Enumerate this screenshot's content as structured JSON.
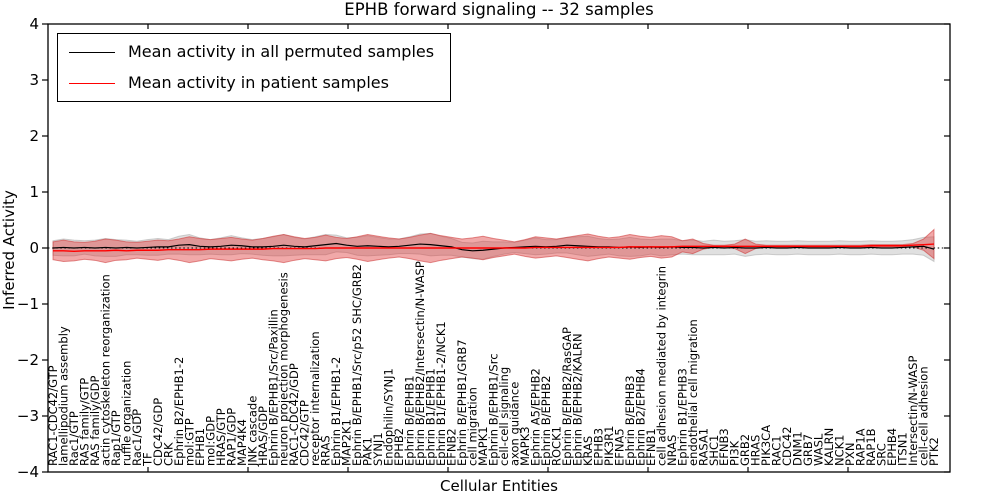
{
  "figure": {
    "background": "#ffffff"
  },
  "chart_data": {
    "type": "line",
    "title": "EPHB forward signaling -- 32 samples",
    "xlabel": "Cellular Entities",
    "ylabel": "Inferred Activity",
    "ylim": [
      -4,
      4
    ],
    "yticks": [
      -4,
      -3,
      -2,
      -1,
      0,
      1,
      2,
      3,
      4
    ],
    "ytick_labels": [
      "−4",
      "−3",
      "−2",
      "−1",
      "0",
      "1",
      "2",
      "3",
      "4"
    ],
    "grid": false,
    "zero_line": {
      "y": 0,
      "style": "dotted",
      "color": "#000000"
    },
    "legend": {
      "position": "upper left",
      "entries": [
        {
          "label": "Mean activity in all permuted samples",
          "color": "#000000"
        },
        {
          "label": "Mean activity in patient samples",
          "color": "#ff0000"
        }
      ]
    },
    "categories": [
      "RAC1-CDC42/GTP",
      "lamellipodium assembly",
      "Rac1/GTP",
      "RAS family/GTP",
      "RAS family/GDP",
      "actin cytoskeleton reorganization",
      "Rap1/GTP",
      "ruffle organization",
      "Rac1/GDP",
      "TF",
      "CDC42/GDP",
      "CRK",
      "Ephrin B2/EPHB1-2",
      "mol:GTP",
      "EPHB1",
      "mol:GDP",
      "HRAS/GTP",
      "RAP1/GDP",
      "MAP4K4",
      "JNK cascade",
      "HRAS/GDP",
      "Ephrin B/EPHB1/Src/Paxillin",
      "neuron projection morphogenesis",
      "RAC1-CDC42/GDP",
      "CDC42/GTP",
      "receptor internalization",
      "RRAS",
      "Ephrin B1/EPHB1-2",
      "MAP2K1",
      "Ephrin B/EPHB1/Src/p52 SHC/GRB2",
      "PAK1",
      "SYNJ1",
      "Endophilin/SYNJ1",
      "EPHB2",
      "Ephrin B/EPHB1",
      "Ephrin B/EPHB2/Intersectin/N-WASP",
      "Ephrin B1/EPHB1",
      "Ephrin B1/EPHB1-2/NCK1",
      "EFNB2",
      "Ephrin B/EPHB1/GRB7",
      "cell migration",
      "MAPK1",
      "Ephrin B/EPHB1/Src",
      "cell-cell signaling",
      "axon guidance",
      "MAPK3",
      "Ephrin A5/EPHB2",
      "Ephrin B/EPHB2",
      "ROCK1",
      "Ephrin B/EPHB2/RasGAP",
      "Ephrin B/EPHB2/KALRN",
      "KRAS",
      "EPHB3",
      "PIK3R1",
      "EFNA5",
      "Ephrin B/EPHB3",
      "Ephrin B2/EPHB4",
      "EFNB1",
      "cell adhesion mediated by integrin",
      "NRAS",
      "Ephrin B1/EPHB3",
      "endothelial cell migration",
      "RASA1",
      "SHC1",
      "EFNB3",
      "PI3K",
      "GRB2",
      "HRAS",
      "PIK3CA",
      "RAC1",
      "CDC42",
      "DNM1",
      "GRB7",
      "WASL",
      "KALRN",
      "NCK1",
      "PXN",
      "RAP1A",
      "RAP1B",
      "SRC",
      "EPHB4",
      "ITSN1",
      "Intersectin/N-WASP",
      "cell-cell adhesion",
      "PTK2"
    ],
    "series": [
      {
        "id": "permuted_band",
        "name": "Permuted samples mean ± std band",
        "type": "band",
        "around": "permuted_mean",
        "color": "#999999",
        "opacity": 0.3,
        "edge_color": "#aaaaaa",
        "std": [
          0.13,
          0.15,
          0.14,
          0.12,
          0.14,
          0.16,
          0.15,
          0.13,
          0.12,
          0.14,
          0.15,
          0.13,
          0.16,
          0.18,
          0.15,
          0.13,
          0.15,
          0.17,
          0.14,
          0.13,
          0.15,
          0.17,
          0.19,
          0.16,
          0.14,
          0.16,
          0.18,
          0.15,
          0.13,
          0.16,
          0.18,
          0.16,
          0.14,
          0.13,
          0.15,
          0.18,
          0.2,
          0.17,
          0.15,
          0.13,
          0.14,
          0.16,
          0.13,
          0.11,
          0.09,
          0.12,
          0.15,
          0.13,
          0.12,
          0.14,
          0.16,
          0.18,
          0.15,
          0.13,
          0.15,
          0.17,
          0.15,
          0.13,
          0.15,
          0.14,
          0.12,
          0.13,
          0.12,
          0.13,
          0.12,
          0.12,
          0.15,
          0.12,
          0.12,
          0.12,
          0.12,
          0.12,
          0.12,
          0.12,
          0.12,
          0.12,
          0.12,
          0.12,
          0.12,
          0.12,
          0.12,
          0.12,
          0.13,
          0.16,
          0.22
        ]
      },
      {
        "id": "patient_band",
        "name": "Patient samples mean ± std band",
        "type": "band",
        "around": "patient_mean",
        "color": "#dd3333",
        "opacity": 0.42,
        "edge_color": "#cc3333",
        "std": [
          0.16,
          0.19,
          0.17,
          0.15,
          0.17,
          0.21,
          0.18,
          0.16,
          0.14,
          0.16,
          0.18,
          0.16,
          0.19,
          0.23,
          0.2,
          0.17,
          0.19,
          0.21,
          0.18,
          0.16,
          0.19,
          0.22,
          0.25,
          0.21,
          0.18,
          0.2,
          0.23,
          0.19,
          0.17,
          0.2,
          0.24,
          0.21,
          0.18,
          0.16,
          0.19,
          0.23,
          0.26,
          0.22,
          0.19,
          0.16,
          0.18,
          0.21,
          0.17,
          0.14,
          0.11,
          0.15,
          0.19,
          0.17,
          0.15,
          0.18,
          0.21,
          0.24,
          0.2,
          0.17,
          0.19,
          0.22,
          0.19,
          0.17,
          0.2,
          0.18,
          0.1,
          0.13,
          0.05,
          0.02,
          0.02,
          0.04,
          0.13,
          0.04,
          0.02,
          0.02,
          0.02,
          0.02,
          0.02,
          0.02,
          0.02,
          0.02,
          0.02,
          0.02,
          0.02,
          0.02,
          0.02,
          0.02,
          0.03,
          0.1,
          0.26
        ]
      },
      {
        "id": "permuted_mean",
        "name": "Mean activity in all permuted samples",
        "type": "line",
        "color": "#000000",
        "width": 1.2,
        "values": [
          0.0,
          0.01,
          0.0,
          0.01,
          0.0,
          0.01,
          0.0,
          0.01,
          0.0,
          0.01,
          0.02,
          0.02,
          0.05,
          0.06,
          0.03,
          0.02,
          0.03,
          0.05,
          0.04,
          0.02,
          0.02,
          0.03,
          0.05,
          0.03,
          0.02,
          0.04,
          0.06,
          0.08,
          0.05,
          0.03,
          0.04,
          0.03,
          0.02,
          0.03,
          0.05,
          0.07,
          0.06,
          0.04,
          0.02,
          -0.03,
          -0.05,
          -0.04,
          -0.02,
          0.0,
          0.01,
          0.02,
          0.03,
          0.02,
          0.03,
          0.05,
          0.04,
          0.03,
          0.02,
          0.02,
          0.01,
          0.02,
          0.01,
          0.02,
          0.01,
          0.02,
          0.01,
          0.01,
          0.0,
          0.01,
          0.0,
          0.01,
          0.0,
          0.0,
          0.01,
          0.0,
          0.0,
          0.01,
          0.0,
          0.0,
          0.0,
          0.01,
          0.0,
          0.0,
          0.01,
          0.0,
          0.0,
          0.01,
          0.02,
          0.03,
          -0.02
        ]
      },
      {
        "id": "patient_mean",
        "name": "Mean activity in patient samples",
        "type": "line",
        "color": "#ff0000",
        "width": 1.4,
        "values": [
          -0.05,
          -0.05,
          -0.06,
          -0.05,
          -0.05,
          -0.05,
          -0.04,
          -0.05,
          -0.04,
          -0.04,
          -0.04,
          -0.03,
          -0.03,
          -0.03,
          -0.03,
          -0.02,
          -0.02,
          -0.02,
          -0.02,
          -0.02,
          -0.02,
          -0.01,
          -0.01,
          -0.01,
          -0.01,
          -0.01,
          0.0,
          0.0,
          0.0,
          0.0,
          0.0,
          0.0,
          0.0,
          0.0,
          0.0,
          0.0,
          0.0,
          0.0,
          0.0,
          0.0,
          0.0,
          0.0,
          0.0,
          0.0,
          0.0,
          0.0,
          0.01,
          0.01,
          0.01,
          0.01,
          0.01,
          0.01,
          0.01,
          0.01,
          0.01,
          0.02,
          0.02,
          0.02,
          0.02,
          0.02,
          0.03,
          0.03,
          0.03,
          0.03,
          0.03,
          0.03,
          0.03,
          0.03,
          0.03,
          0.03,
          0.03,
          0.03,
          0.03,
          0.03,
          0.03,
          0.03,
          0.03,
          0.03,
          0.04,
          0.04,
          0.04,
          0.04,
          0.05,
          0.06,
          0.07
        ]
      }
    ]
  }
}
